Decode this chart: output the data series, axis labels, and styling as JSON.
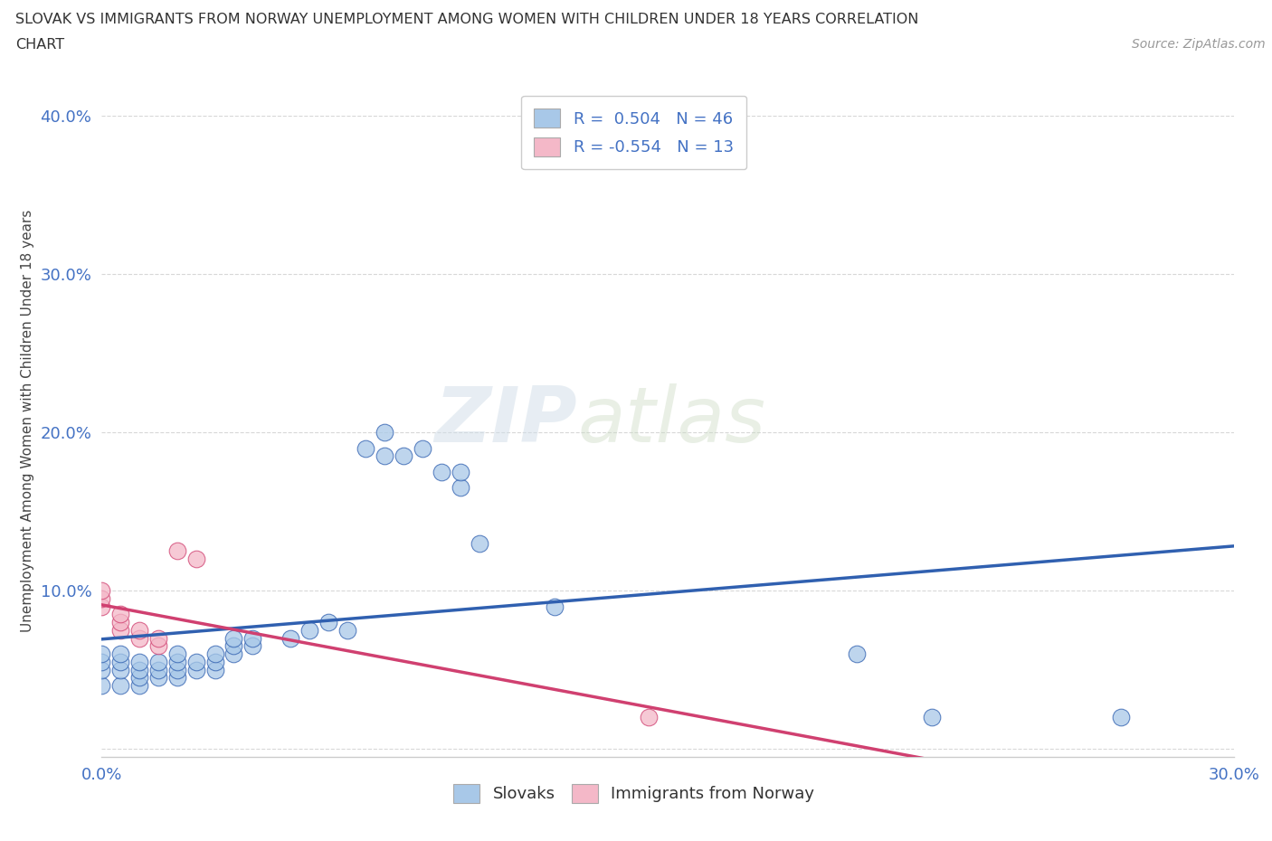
{
  "title_line1": "SLOVAK VS IMMIGRANTS FROM NORWAY UNEMPLOYMENT AMONG WOMEN WITH CHILDREN UNDER 18 YEARS CORRELATION",
  "title_line2": "CHART",
  "source_text": "Source: ZipAtlas.com",
  "ylabel": "Unemployment Among Women with Children Under 18 years",
  "xlim": [
    0.0,
    0.3
  ],
  "ylim": [
    -0.005,
    0.42
  ],
  "xticks": [
    0.0,
    0.05,
    0.1,
    0.15,
    0.2,
    0.25,
    0.3
  ],
  "yticks": [
    0.0,
    0.1,
    0.2,
    0.3,
    0.4
  ],
  "xticklabels": [
    "0.0%",
    "",
    "",
    "",
    "",
    "",
    "30.0%"
  ],
  "yticklabels": [
    "",
    "10.0%",
    "20.0%",
    "30.0%",
    "40.0%"
  ],
  "R_slovak": 0.504,
  "N_slovak": 46,
  "R_norway": -0.554,
  "N_norway": 13,
  "slovak_color": "#a8c8e8",
  "norway_color": "#f4b8c8",
  "line_slovak_color": "#3060b0",
  "line_norway_color": "#d04070",
  "watermark_part1": "ZIP",
  "watermark_part2": "atlas",
  "slovak_points": [
    [
      0.0,
      0.04
    ],
    [
      0.0,
      0.05
    ],
    [
      0.0,
      0.055
    ],
    [
      0.0,
      0.06
    ],
    [
      0.005,
      0.04
    ],
    [
      0.005,
      0.05
    ],
    [
      0.005,
      0.055
    ],
    [
      0.005,
      0.06
    ],
    [
      0.01,
      0.04
    ],
    [
      0.01,
      0.045
    ],
    [
      0.01,
      0.05
    ],
    [
      0.01,
      0.055
    ],
    [
      0.015,
      0.045
    ],
    [
      0.015,
      0.05
    ],
    [
      0.015,
      0.055
    ],
    [
      0.02,
      0.045
    ],
    [
      0.02,
      0.05
    ],
    [
      0.02,
      0.055
    ],
    [
      0.02,
      0.06
    ],
    [
      0.025,
      0.05
    ],
    [
      0.025,
      0.055
    ],
    [
      0.03,
      0.05
    ],
    [
      0.03,
      0.055
    ],
    [
      0.03,
      0.06
    ],
    [
      0.035,
      0.06
    ],
    [
      0.035,
      0.065
    ],
    [
      0.035,
      0.07
    ],
    [
      0.04,
      0.065
    ],
    [
      0.04,
      0.07
    ],
    [
      0.05,
      0.07
    ],
    [
      0.055,
      0.075
    ],
    [
      0.06,
      0.08
    ],
    [
      0.065,
      0.075
    ],
    [
      0.07,
      0.19
    ],
    [
      0.075,
      0.185
    ],
    [
      0.075,
      0.2
    ],
    [
      0.08,
      0.185
    ],
    [
      0.085,
      0.19
    ],
    [
      0.09,
      0.175
    ],
    [
      0.095,
      0.165
    ],
    [
      0.095,
      0.175
    ],
    [
      0.1,
      0.13
    ],
    [
      0.12,
      0.09
    ],
    [
      0.2,
      0.06
    ],
    [
      0.22,
      0.02
    ],
    [
      0.27,
      0.02
    ]
  ],
  "norway_points": [
    [
      0.0,
      0.09
    ],
    [
      0.0,
      0.095
    ],
    [
      0.0,
      0.1
    ],
    [
      0.005,
      0.075
    ],
    [
      0.005,
      0.08
    ],
    [
      0.005,
      0.085
    ],
    [
      0.01,
      0.07
    ],
    [
      0.01,
      0.075
    ],
    [
      0.015,
      0.065
    ],
    [
      0.015,
      0.07
    ],
    [
      0.02,
      0.125
    ],
    [
      0.025,
      0.12
    ],
    [
      0.145,
      0.02
    ]
  ],
  "background_color": "#ffffff",
  "grid_color": "#c8c8c8"
}
